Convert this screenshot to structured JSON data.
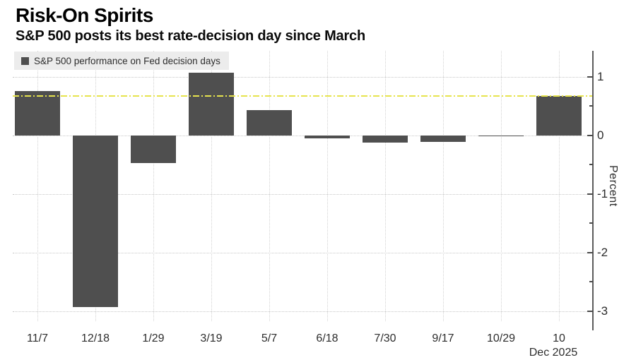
{
  "header": {
    "title": "Risk-On Spirits",
    "subtitle": "S&P 500 posts its best rate-decision day since March"
  },
  "legend": {
    "label": "S&P 500 performance on Fed decision days",
    "swatch_color": "#4f4f4f"
  },
  "chart_data": {
    "type": "bar",
    "title": "Risk-On Spirits",
    "subtitle": "S&P 500 posts its best rate-decision day since March",
    "series_name": "S&P 500 performance on Fed decision days",
    "categories": [
      "11/7",
      "12/18",
      "1/29",
      "3/19",
      "5/7",
      "6/18",
      "7/30",
      "9/17",
      "10/29",
      "10"
    ],
    "values": [
      0.75,
      -2.93,
      -0.47,
      1.07,
      0.43,
      -0.05,
      -0.13,
      -0.11,
      -0.01,
      0.67
    ],
    "last_category_sublabel": "Dec 2025",
    "xlabel": "",
    "ylabel": "Percent",
    "yticks": [
      1,
      0,
      -1,
      -2,
      -3
    ],
    "y_minor_ticks": [
      0.5,
      -0.5,
      -1.5,
      -2.5
    ],
    "ylim": [
      -3.35,
      1.44
    ],
    "grid": "dotted",
    "legend_position": "top-left",
    "reference_line": {
      "value": 0.67,
      "style": "dash-dot",
      "color": "#e7e44e"
    },
    "bar_color": "#4f4f4f"
  },
  "colors": {
    "background": "#ffffff",
    "bar": "#4f4f4f",
    "reference_line": "#e7e44e",
    "gridline": "#c7c7c7",
    "axis": "#5c5c5c",
    "text": "#2b2b2b",
    "legend_background": "#ececec"
  }
}
